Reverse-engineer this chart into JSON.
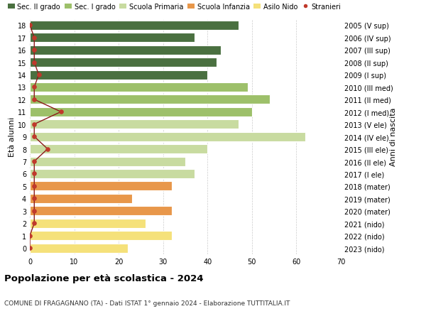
{
  "ages": [
    0,
    1,
    2,
    3,
    4,
    5,
    6,
    7,
    8,
    9,
    10,
    11,
    12,
    13,
    14,
    15,
    16,
    17,
    18
  ],
  "years": [
    "2023 (nido)",
    "2022 (nido)",
    "2021 (nido)",
    "2020 (mater)",
    "2019 (mater)",
    "2018 (mater)",
    "2017 (I ele)",
    "2016 (II ele)",
    "2015 (III ele)",
    "2014 (IV ele)",
    "2013 (V ele)",
    "2012 (I med)",
    "2011 (II med)",
    "2010 (III med)",
    "2009 (I sup)",
    "2008 (II sup)",
    "2007 (III sup)",
    "2006 (IV sup)",
    "2005 (V sup)"
  ],
  "values": [
    22,
    32,
    26,
    32,
    23,
    32,
    37,
    35,
    40,
    62,
    47,
    50,
    54,
    49,
    40,
    42,
    43,
    37,
    47
  ],
  "stranieri": [
    0,
    0,
    1,
    1,
    1,
    1,
    1,
    1,
    4,
    1,
    1,
    7,
    1,
    1,
    2,
    1,
    1,
    1,
    0
  ],
  "bar_colors": [
    "#f5e17a",
    "#f5e17a",
    "#f5e17a",
    "#e8974a",
    "#e8974a",
    "#e8974a",
    "#c8dba0",
    "#c8dba0",
    "#c8dba0",
    "#c8dba0",
    "#c8dba0",
    "#9dc06a",
    "#9dc06a",
    "#9dc06a",
    "#4a7040",
    "#4a7040",
    "#4a7040",
    "#4a7040",
    "#4a7040"
  ],
  "legend_colors": [
    "#4a7040",
    "#9dc06a",
    "#c8dba0",
    "#e8974a",
    "#f5e17a",
    "#c0392b"
  ],
  "legend_labels": [
    "Sec. II grado",
    "Sec. I grado",
    "Scuola Primaria",
    "Scuola Infanzia",
    "Asilo Nido",
    "Stranieri"
  ],
  "stranieri_color": "#c0392b",
  "stranieri_line_color": "#8b1a1a",
  "title": "Popolazione per età scolastica - 2024",
  "subtitle": "COMUNE DI FRAGAGNANO (TA) - Dati ISTAT 1° gennaio 2024 - Elaborazione TUTTITALIA.IT",
  "ylabel_left": "Età alunni",
  "ylabel_right": "Anni di nascita",
  "xlim": [
    0,
    70
  ],
  "xticks": [
    0,
    10,
    20,
    30,
    40,
    50,
    60,
    70
  ],
  "background_color": "#ffffff",
  "grid_color": "#cccccc"
}
